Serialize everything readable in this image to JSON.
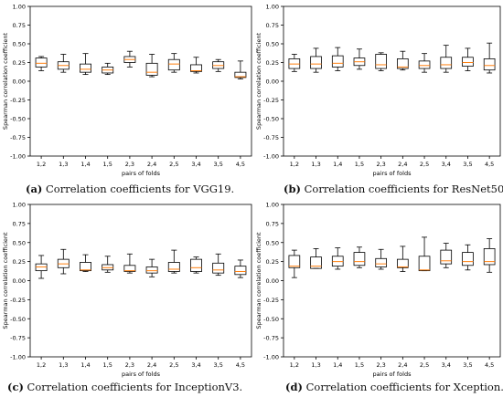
{
  "figure": {
    "captions": [
      {
        "tag": "(a)",
        "text": "Correlation coefficients for VGG19."
      },
      {
        "tag": "(b)",
        "text": "Correlation coefficients for ResNet50."
      },
      {
        "tag": "(c)",
        "text": "Correlation coefficients for InceptionV3."
      },
      {
        "tag": "(d)",
        "text": "Correlation coefficients for Xception."
      }
    ],
    "colors": {
      "box": "#000000",
      "median": "#ff7f0e",
      "axis": "#000000"
    }
  },
  "chart_data": [
    {
      "type": "box",
      "xlabel": "pairs of folds",
      "ylabel": "Spearman correlation coefficient",
      "ylim": [
        -1.0,
        1.0
      ],
      "yticks": [
        "-1.00",
        "-0.75",
        "-0.50",
        "-0.25",
        "0.00",
        "0.25",
        "0.50",
        "0.75",
        "1.00"
      ],
      "categories": [
        "1,2",
        "1,3",
        "1,4",
        "1,5",
        "2,3",
        "2,4",
        "2,5",
        "3,4",
        "3,5",
        "4,5"
      ],
      "boxes": [
        {
          "whislo": 0.14,
          "q1": 0.19,
          "med": 0.24,
          "q3": 0.31,
          "whishi": 0.33
        },
        {
          "whislo": 0.12,
          "q1": 0.16,
          "med": 0.21,
          "q3": 0.26,
          "whishi": 0.36
        },
        {
          "whislo": 0.09,
          "q1": 0.12,
          "med": 0.16,
          "q3": 0.23,
          "whishi": 0.37
        },
        {
          "whislo": 0.09,
          "q1": 0.11,
          "med": 0.15,
          "q3": 0.19,
          "whishi": 0.24
        },
        {
          "whislo": 0.19,
          "q1": 0.25,
          "med": 0.29,
          "q3": 0.33,
          "whishi": 0.4
        },
        {
          "whislo": 0.06,
          "q1": 0.08,
          "med": 0.12,
          "q3": 0.24,
          "whishi": 0.36
        },
        {
          "whislo": 0.12,
          "q1": 0.15,
          "med": 0.23,
          "q3": 0.29,
          "whishi": 0.37
        },
        {
          "whislo": 0.11,
          "q1": 0.13,
          "med": 0.14,
          "q3": 0.22,
          "whishi": 0.32
        },
        {
          "whislo": 0.13,
          "q1": 0.17,
          "med": 0.21,
          "q3": 0.26,
          "whishi": 0.29
        },
        {
          "whislo": 0.03,
          "q1": 0.05,
          "med": 0.06,
          "q3": 0.12,
          "whishi": 0.27
        }
      ]
    },
    {
      "type": "box",
      "xlabel": "pairs of folds",
      "ylabel": "Spearman correlation coefficient",
      "ylim": [
        -1.0,
        1.0
      ],
      "yticks": [
        "-1.00",
        "-0.75",
        "-0.50",
        "-0.25",
        "0.00",
        "0.25",
        "0.50",
        "0.75",
        "1.00"
      ],
      "categories": [
        "1,2",
        "1,3",
        "1,4",
        "1,5",
        "2,3",
        "2,4",
        "2,5",
        "3,4",
        "3,5",
        "4,5"
      ],
      "boxes": [
        {
          "whislo": 0.13,
          "q1": 0.17,
          "med": 0.23,
          "q3": 0.3,
          "whishi": 0.36
        },
        {
          "whislo": 0.12,
          "q1": 0.17,
          "med": 0.23,
          "q3": 0.33,
          "whishi": 0.44
        },
        {
          "whislo": 0.14,
          "q1": 0.19,
          "med": 0.24,
          "q3": 0.34,
          "whishi": 0.45
        },
        {
          "whislo": 0.16,
          "q1": 0.21,
          "med": 0.26,
          "q3": 0.31,
          "whishi": 0.43
        },
        {
          "whislo": 0.14,
          "q1": 0.17,
          "med": 0.22,
          "q3": 0.36,
          "whishi": 0.38
        },
        {
          "whislo": 0.15,
          "q1": 0.17,
          "med": 0.19,
          "q3": 0.3,
          "whishi": 0.4
        },
        {
          "whislo": 0.12,
          "q1": 0.17,
          "med": 0.21,
          "q3": 0.27,
          "whishi": 0.37
        },
        {
          "whislo": 0.12,
          "q1": 0.17,
          "med": 0.22,
          "q3": 0.32,
          "whishi": 0.48
        },
        {
          "whislo": 0.14,
          "q1": 0.2,
          "med": 0.25,
          "q3": 0.32,
          "whishi": 0.44
        },
        {
          "whislo": 0.11,
          "q1": 0.15,
          "med": 0.21,
          "q3": 0.3,
          "whishi": 0.51
        }
      ]
    },
    {
      "type": "box",
      "xlabel": "pairs of folds",
      "ylabel": "Spearman correlation coefficient",
      "ylim": [
        -1.0,
        1.0
      ],
      "yticks": [
        "-1.00",
        "-0.75",
        "-0.50",
        "-0.25",
        "0.00",
        "0.25",
        "0.50",
        "0.75",
        "1.00"
      ],
      "categories": [
        "1,2",
        "1,3",
        "1,4",
        "1,5",
        "2,3",
        "2,4",
        "2,5",
        "3,4",
        "3,5",
        "4,5"
      ],
      "boxes": [
        {
          "whislo": 0.03,
          "q1": 0.13,
          "med": 0.18,
          "q3": 0.22,
          "whishi": 0.33
        },
        {
          "whislo": 0.09,
          "q1": 0.17,
          "med": 0.22,
          "q3": 0.28,
          "whishi": 0.41
        },
        {
          "whislo": 0.12,
          "q1": 0.13,
          "med": 0.14,
          "q3": 0.24,
          "whishi": 0.34
        },
        {
          "whislo": 0.11,
          "q1": 0.14,
          "med": 0.17,
          "q3": 0.21,
          "whishi": 0.32
        },
        {
          "whislo": 0.1,
          "q1": 0.12,
          "med": 0.13,
          "q3": 0.2,
          "whishi": 0.35
        },
        {
          "whislo": 0.05,
          "q1": 0.1,
          "med": 0.13,
          "q3": 0.18,
          "whishi": 0.28
        },
        {
          "whislo": 0.1,
          "q1": 0.12,
          "med": 0.15,
          "q3": 0.24,
          "whishi": 0.4
        },
        {
          "whislo": 0.1,
          "q1": 0.12,
          "med": 0.17,
          "q3": 0.28,
          "whishi": 0.31
        },
        {
          "whislo": 0.07,
          "q1": 0.1,
          "med": 0.14,
          "q3": 0.23,
          "whishi": 0.35
        },
        {
          "whislo": 0.04,
          "q1": 0.08,
          "med": 0.12,
          "q3": 0.19,
          "whishi": 0.27
        }
      ]
    },
    {
      "type": "box",
      "xlabel": "pairs of folds",
      "ylabel": "Spearman correlation coefficient",
      "ylim": [
        -1.0,
        1.0
      ],
      "yticks": [
        "-1.00",
        "-0.75",
        "-0.50",
        "-0.25",
        "0.00",
        "0.25",
        "0.50",
        "0.75",
        "1.00"
      ],
      "categories": [
        "1,2",
        "1,3",
        "1,4",
        "1,5",
        "2,3",
        "2,4",
        "2,5",
        "3,4",
        "3,5",
        "4,5"
      ],
      "boxes": [
        {
          "whislo": 0.04,
          "q1": 0.17,
          "med": 0.19,
          "q3": 0.33,
          "whishi": 0.4
        },
        {
          "whislo": 0.16,
          "q1": 0.16,
          "med": 0.19,
          "q3": 0.31,
          "whishi": 0.42
        },
        {
          "whislo": 0.15,
          "q1": 0.19,
          "med": 0.25,
          "q3": 0.32,
          "whishi": 0.43
        },
        {
          "whislo": 0.17,
          "q1": 0.2,
          "med": 0.25,
          "q3": 0.37,
          "whishi": 0.44
        },
        {
          "whislo": 0.15,
          "q1": 0.18,
          "med": 0.22,
          "q3": 0.29,
          "whishi": 0.41
        },
        {
          "whislo": 0.12,
          "q1": 0.17,
          "med": 0.18,
          "q3": 0.28,
          "whishi": 0.45
        },
        {
          "whislo": 0.13,
          "q1": 0.13,
          "med": 0.14,
          "q3": 0.32,
          "whishi": 0.57
        },
        {
          "whislo": 0.17,
          "q1": 0.22,
          "med": 0.26,
          "q3": 0.4,
          "whishi": 0.49
        },
        {
          "whislo": 0.14,
          "q1": 0.2,
          "med": 0.25,
          "q3": 0.37,
          "whishi": 0.47
        },
        {
          "whislo": 0.11,
          "q1": 0.21,
          "med": 0.25,
          "q3": 0.42,
          "whishi": 0.55
        }
      ]
    }
  ]
}
